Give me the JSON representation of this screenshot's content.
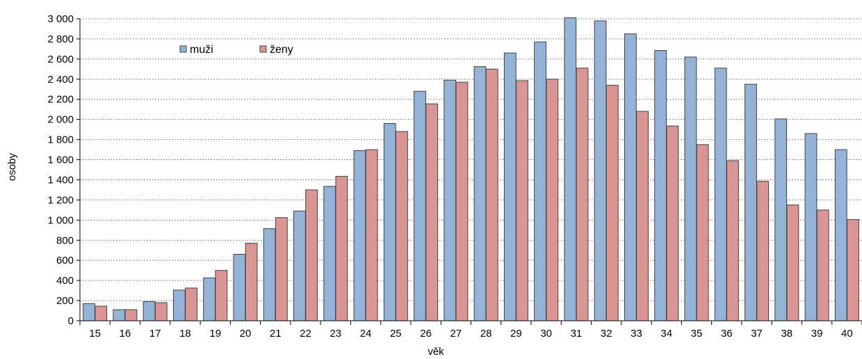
{
  "chart_data": {
    "type": "bar",
    "title": "",
    "xlabel": "věk",
    "ylabel": "osoby",
    "ylim": [
      0,
      3000
    ],
    "y_ticks": [
      0,
      200,
      400,
      600,
      800,
      1000,
      1200,
      1400,
      1600,
      1800,
      2000,
      2200,
      2400,
      2600,
      2800,
      3000
    ],
    "y_tick_labels": [
      "0",
      "200",
      "400",
      "600",
      "800",
      "1 000",
      "1 200",
      "1 400",
      "1 600",
      "1 800",
      "2 000",
      "2 200",
      "2 400",
      "2 600",
      "2 800",
      "3 000"
    ],
    "grid": true,
    "legend_position": "top-left",
    "categories": [
      "15",
      "16",
      "17",
      "18",
      "19",
      "20",
      "21",
      "22",
      "23",
      "24",
      "25",
      "26",
      "27",
      "28",
      "29",
      "30",
      "31",
      "32",
      "33",
      "34",
      "35",
      "36",
      "37",
      "38",
      "39",
      "40"
    ],
    "series": [
      {
        "name": "muži",
        "color": "#95b3d7",
        "values": [
          170,
          110,
          190,
          305,
          425,
          660,
          915,
          1090,
          1335,
          1690,
          1960,
          2280,
          2390,
          2525,
          2660,
          2770,
          3010,
          2980,
          2850,
          2685,
          2620,
          2510,
          2350,
          2005,
          1860,
          1700
        ]
      },
      {
        "name": "ženy",
        "color": "#d99694",
        "values": [
          145,
          110,
          180,
          325,
          500,
          770,
          1025,
          1300,
          1435,
          1700,
          1880,
          2155,
          2370,
          2500,
          2385,
          2400,
          2510,
          2340,
          2080,
          1935,
          1750,
          1590,
          1385,
          1150,
          1100,
          1005
        ]
      }
    ]
  }
}
